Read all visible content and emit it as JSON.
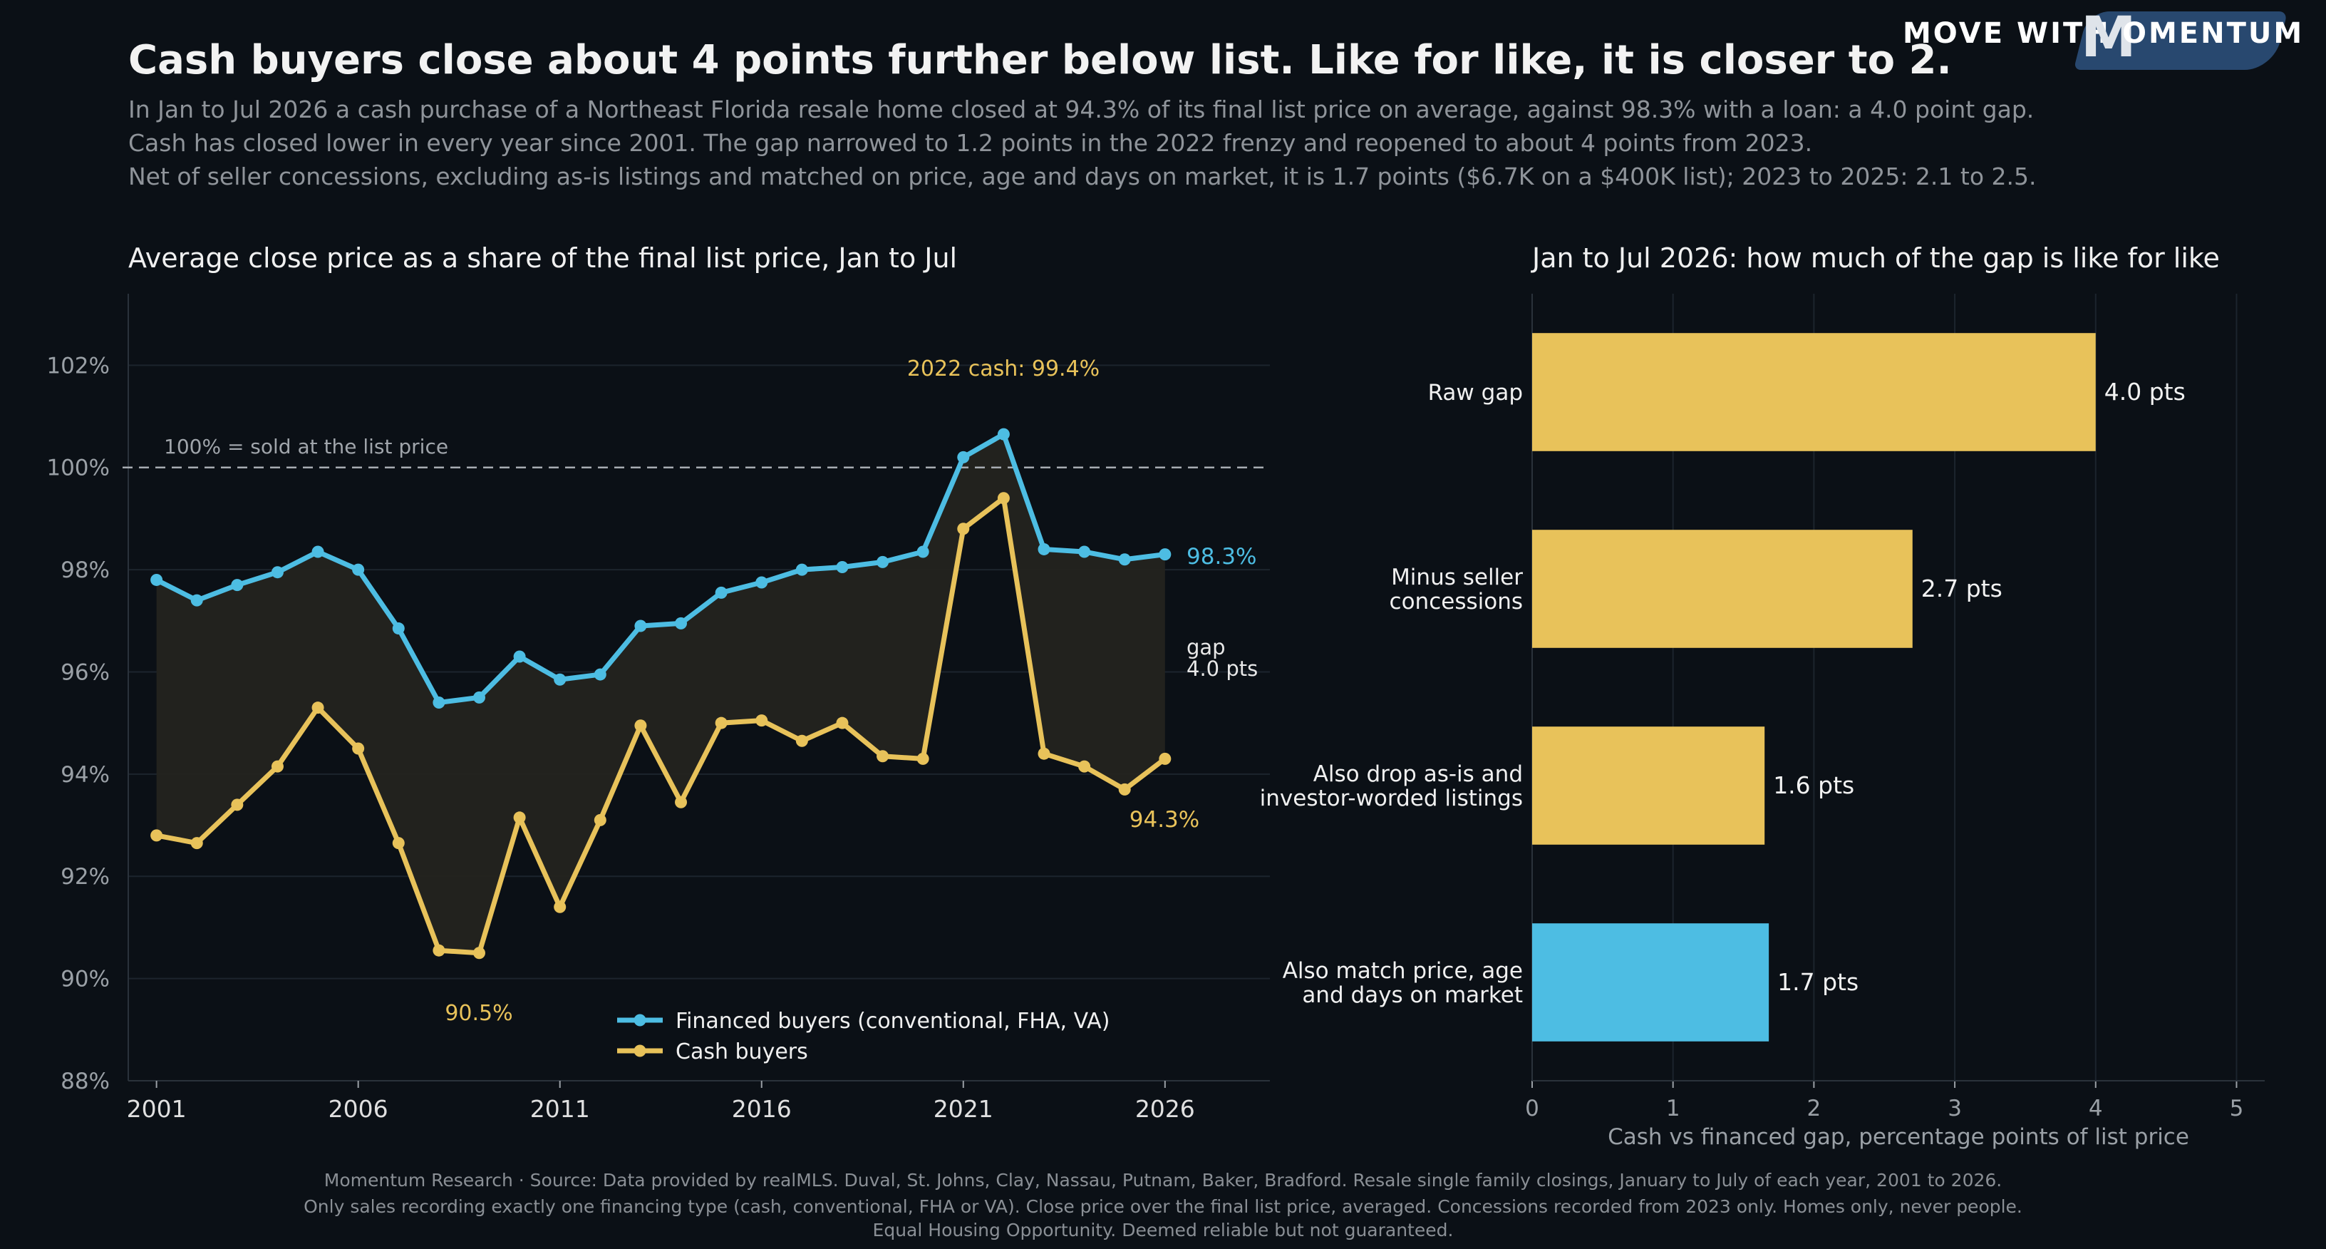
{
  "brand": {
    "prefix": "MOVE WITH",
    "m": "M",
    "rest": "OMENTUM"
  },
  "title": "Cash buyers close about 4 points further below list. Like for like, it is closer to 2.",
  "subtitle_lines": [
    "In Jan to Jul 2026 a cash purchase of a Northeast Florida resale home closed at 94.3% of its final list price on average, against 98.3% with a loan: a 4.0 point gap.",
    "Cash has closed lower in every year since 2001. The gap narrowed to 1.2 points in the 2022 frenzy and reopened to about 4 points from 2023.",
    "Net of seller concessions, excluding as-is listings and matched on price, age and days on market, it is 1.7 points ($6.7K on a $400K list); 2023 to 2025: 2.1 to 2.5."
  ],
  "footer_lines": [
    "Momentum Research   ·   Source: Data provided by realMLS.   Duval, St. Johns, Clay, Nassau, Putnam, Baker, Bradford.   Resale single family closings, January to July of each year, 2001 to 2026.",
    "Only sales recording exactly one financing type (cash, conventional, FHA or VA). Close price over the final list price, averaged. Concessions recorded from 2023 only. Homes only, never people.",
    "Equal Housing Opportunity.   Deemed reliable but not guaranteed."
  ],
  "colors": {
    "financed": "#4dbde3",
    "cash": "#e8c25a",
    "background": "#0b1016",
    "gap_fill": "#24241f",
    "matched_bar": "#4dbde3"
  },
  "chart_data": [
    {
      "type": "line",
      "title": "Average close price as a share of the final list price, Jan to Jul",
      "x": [
        2001,
        2002,
        2003,
        2004,
        2005,
        2006,
        2007,
        2008,
        2009,
        2010,
        2011,
        2012,
        2013,
        2014,
        2015,
        2016,
        2017,
        2018,
        2019,
        2020,
        2021,
        2022,
        2023,
        2024,
        2025,
        2026
      ],
      "series": [
        {
          "name": "Financed buyers (conventional, FHA, VA)",
          "values": [
            97.8,
            97.4,
            97.7,
            97.95,
            98.35,
            98.0,
            96.85,
            95.4,
            95.5,
            96.3,
            95.85,
            95.95,
            96.9,
            96.95,
            97.55,
            97.75,
            98.0,
            98.05,
            98.15,
            98.35,
            100.2,
            100.65,
            98.4,
            98.35,
            98.2,
            98.3
          ]
        },
        {
          "name": "Cash buyers",
          "values": [
            92.8,
            92.65,
            93.4,
            94.15,
            95.3,
            94.5,
            92.65,
            90.55,
            90.5,
            93.15,
            91.4,
            93.1,
            94.95,
            93.45,
            95.0,
            95.05,
            94.65,
            95.0,
            94.35,
            94.3,
            98.8,
            99.4,
            94.4,
            94.15,
            93.7,
            94.3
          ]
        }
      ],
      "xticks": [
        2001,
        2006,
        2011,
        2016,
        2021,
        2026
      ],
      "yticks": [
        88,
        90,
        92,
        94,
        96,
        98,
        100,
        102
      ],
      "ytick_labels": [
        "88%",
        "90%",
        "92%",
        "94%",
        "96%",
        "98%",
        "100%",
        "102%"
      ],
      "ylim": [
        88,
        103.4
      ],
      "xlim": [
        2000.3,
        2028.6
      ],
      "reference_line": {
        "value": 100,
        "label": "100% = sold at the list price"
      },
      "annotations": {
        "peak_cash": "2022 cash: 99.4%",
        "low_cash": "90.5%",
        "end_financed": "98.3%",
        "end_cash": "94.3%",
        "gap_line1": "gap",
        "gap_line2": "4.0 pts"
      },
      "grid": "y",
      "legend_position": "bottom-right"
    },
    {
      "type": "bar",
      "orientation": "horizontal",
      "title": "Jan to Jul 2026: how much of the gap is like for like",
      "categories": [
        [
          "Raw gap"
        ],
        [
          "Minus seller",
          "concessions"
        ],
        [
          "Also drop as-is and",
          "investor-worded listings"
        ],
        [
          "Also match price, age",
          "and days on market"
        ]
      ],
      "values": [
        4.0,
        2.7,
        1.65,
        1.68
      ],
      "value_labels": [
        "4.0 pts",
        "2.7 pts",
        "1.6 pts",
        "1.7 pts"
      ],
      "xlabel": "Cash vs financed gap, percentage points of list price",
      "xticks": [
        0,
        1,
        2,
        3,
        4,
        5
      ],
      "xlim": [
        0,
        5.2
      ],
      "grid": "x"
    }
  ]
}
